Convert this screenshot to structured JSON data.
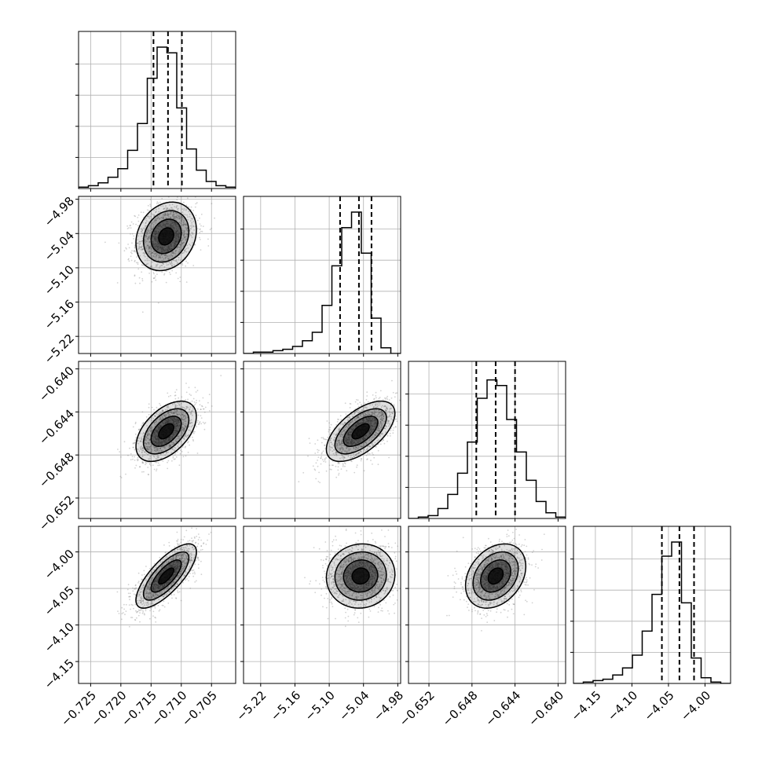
{
  "chart_data": {
    "type": "corner",
    "parameters": [
      {
        "range": [
          -0.727,
          -0.701
        ],
        "ticks": [
          -0.725,
          -0.72,
          -0.715,
          -0.71,
          -0.705
        ],
        "tick_labels": [
          "−0.725",
          "−0.720",
          "−0.715",
          "−0.710",
          "−0.705"
        ],
        "mean": -0.7125,
        "sd": 0.0025,
        "quantiles": [
          -0.7146,
          -0.7122,
          -0.7099
        ],
        "hist": [
          0.01,
          0.02,
          0.04,
          0.08,
          0.14,
          0.27,
          0.46,
          0.78,
          1.0,
          0.96,
          0.57,
          0.28,
          0.13,
          0.05,
          0.02,
          0.01
        ]
      },
      {
        "range": [
          -5.25,
          -4.975
        ],
        "ticks": [
          -5.22,
          -5.16,
          -5.1,
          -5.04,
          -4.98
        ],
        "tick_labels": [
          "−5.22",
          "−5.16",
          "−5.10",
          "−5.04",
          "−4.98"
        ],
        "mean": -5.045,
        "sd": 0.03,
        "quantiles": [
          -5.081,
          -5.048,
          -5.026
        ],
        "hist": [
          0.0,
          0.01,
          0.01,
          0.02,
          0.03,
          0.05,
          0.09,
          0.15,
          0.34,
          0.62,
          0.89,
          1.0,
          0.71,
          0.25,
          0.04,
          0.0
        ]
      },
      {
        "range": [
          -0.6539,
          -0.6393
        ],
        "ticks": [
          -0.652,
          -0.648,
          -0.644,
          -0.64
        ],
        "tick_labels": [
          "−0.652",
          "−0.648",
          "−0.644",
          "−0.640"
        ],
        "mean": -0.6458,
        "sd": 0.0014,
        "quantiles": [
          -0.6476,
          -0.6458,
          -0.644
        ],
        "hist": [
          0.0,
          0.01,
          0.02,
          0.07,
          0.17,
          0.32,
          0.54,
          0.85,
          0.98,
          0.94,
          0.7,
          0.47,
          0.27,
          0.12,
          0.04,
          0.01
        ]
      },
      {
        "range": [
          -4.18,
          -3.965
        ],
        "ticks": [
          -4.15,
          -4.1,
          -4.05,
          -4.0
        ],
        "tick_labels": [
          "−4.15",
          "−4.10",
          "−4.05",
          "−4.00"
        ],
        "mean": -4.033,
        "sd": 0.022,
        "quantiles": [
          -4.059,
          -4.035,
          -4.015
        ],
        "hist": [
          0.0,
          0.01,
          0.02,
          0.03,
          0.06,
          0.11,
          0.2,
          0.37,
          0.63,
          0.9,
          1.0,
          0.57,
          0.18,
          0.04,
          0.01,
          0.0
        ]
      }
    ],
    "correlations": [
      [
        1,
        0.2,
        0.5,
        0.75
      ],
      [
        0.2,
        1,
        0.6,
        0.05
      ],
      [
        0.5,
        0.6,
        1,
        0.3
      ],
      [
        0.75,
        0.05,
        0.3,
        1
      ]
    ],
    "grid": true,
    "colors": {
      "points": "#7f7f7f",
      "density": "#000000",
      "lines": "#000000"
    }
  }
}
